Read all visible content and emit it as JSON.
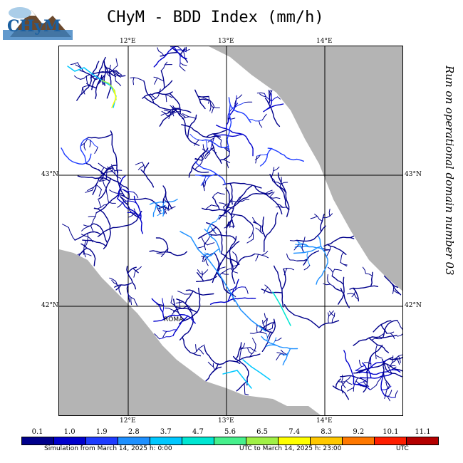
{
  "title": "CHyM - BDD Index (mm/h)",
  "logo_text": "CHyM",
  "side_text": "Run on operational domain number 03",
  "lon_top": [
    "12°E",
    "13°E",
    "14°E"
  ],
  "lon_bottom": [
    "12°E",
    "13°E",
    "14°E"
  ],
  "lat_left": [
    "43°N",
    "42°N"
  ],
  "lat_right": [
    "43°N",
    "42°N"
  ],
  "city_label": "ROMA",
  "colorbar": {
    "labels": [
      "0.1",
      "1.0",
      "1.9",
      "2.8",
      "3.7",
      "4.7",
      "5.6",
      "6.5",
      "7.4",
      "8.3",
      "9.2",
      "10.1",
      "11.1"
    ],
    "colors": [
      "#00008b",
      "#0000cd",
      "#1e3cff",
      "#1e90ff",
      "#00c8ff",
      "#00e6d2",
      "#46f08c",
      "#a0f046",
      "#ffff00",
      "#ffc800",
      "#ff7800",
      "#ff1e00",
      "#b40000"
    ]
  },
  "footer": {
    "left": "Simulation from March 14, 2025 h: 0:00",
    "mid": "UTC to March 14, 2025 h: 23:00",
    "right": "UTC"
  }
}
